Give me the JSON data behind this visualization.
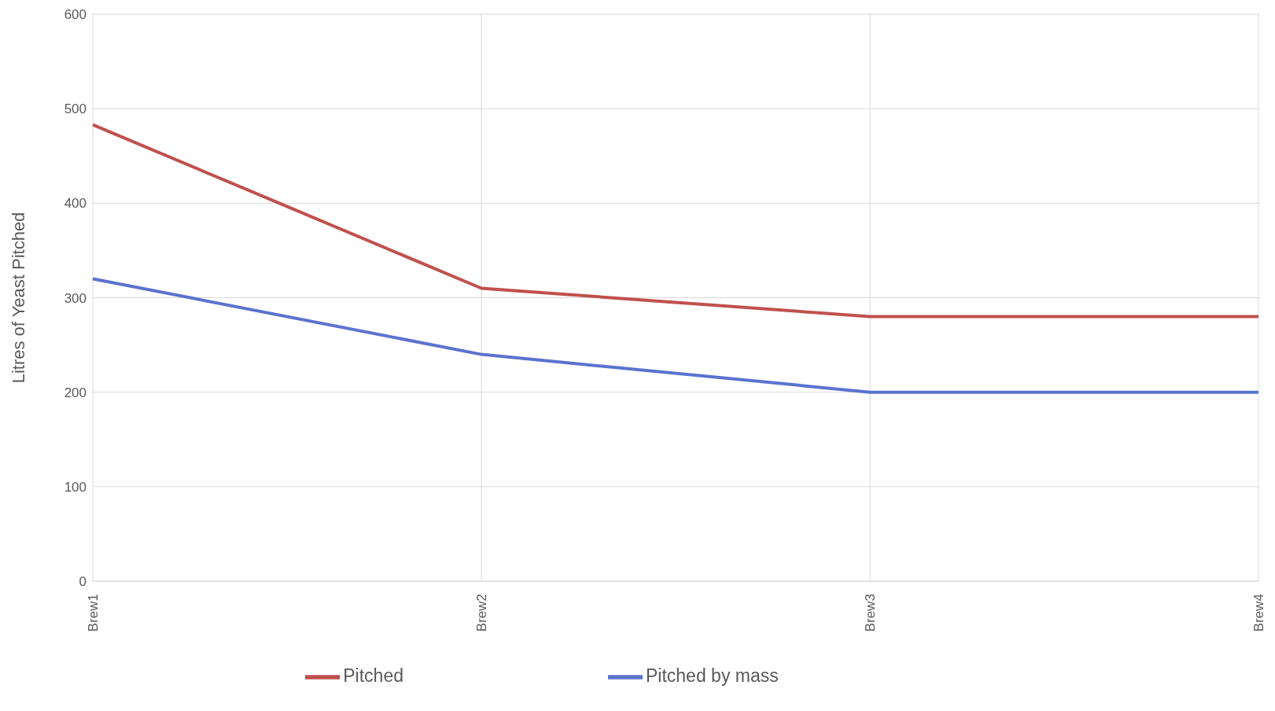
{
  "chart_data": {
    "type": "line",
    "ylabel": "Litres of Yeast Pitched",
    "categories": [
      "Brew1",
      "Brew2",
      "Brew3",
      "Brew4"
    ],
    "series": [
      {
        "name": "Pitched by mass",
        "color": "#5b73cf",
        "values": [
          320,
          240,
          200,
          200
        ]
      },
      {
        "name": "Pitched",
        "color": "#c0504d",
        "values": [
          483,
          310,
          280,
          280
        ]
      }
    ],
    "ylim": [
      0,
      600
    ],
    "yticks": [
      0,
      100,
      200,
      300,
      400,
      500,
      600
    ],
    "grid": true,
    "legend": "bottom",
    "marker": "none",
    "line_style": "solid"
  }
}
